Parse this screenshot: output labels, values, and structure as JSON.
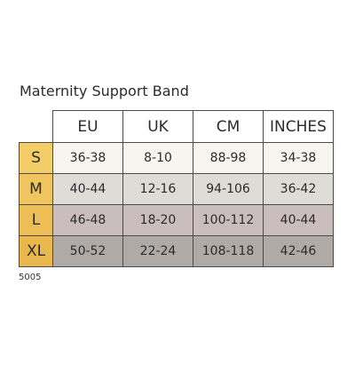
{
  "title": "Maternity Support Band",
  "columns": [
    "EU",
    "UK",
    "CM",
    "INCHES"
  ],
  "rows": [
    {
      "size": "S",
      "values": [
        "36-38",
        "8-10",
        "88-98",
        "34-38"
      ],
      "label_color": "#f3cd67",
      "row_color": "#f7f5f0"
    },
    {
      "size": "M",
      "values": [
        "40-44",
        "12-16",
        "94-106",
        "36-42"
      ],
      "label_color": "#f0c560",
      "row_color": "#dfdbd7"
    },
    {
      "size": "L",
      "values": [
        "46-48",
        "18-20",
        "100-112",
        "40-44"
      ],
      "label_color": "#edbe56",
      "row_color": "#c9bdbf"
    },
    {
      "size": "XL",
      "values": [
        "50-52",
        "22-24",
        "108-118",
        "42-46"
      ],
      "label_color": "#e8b74e",
      "row_color": "#b0aaa6"
    }
  ],
  "footer_code": "5005"
}
